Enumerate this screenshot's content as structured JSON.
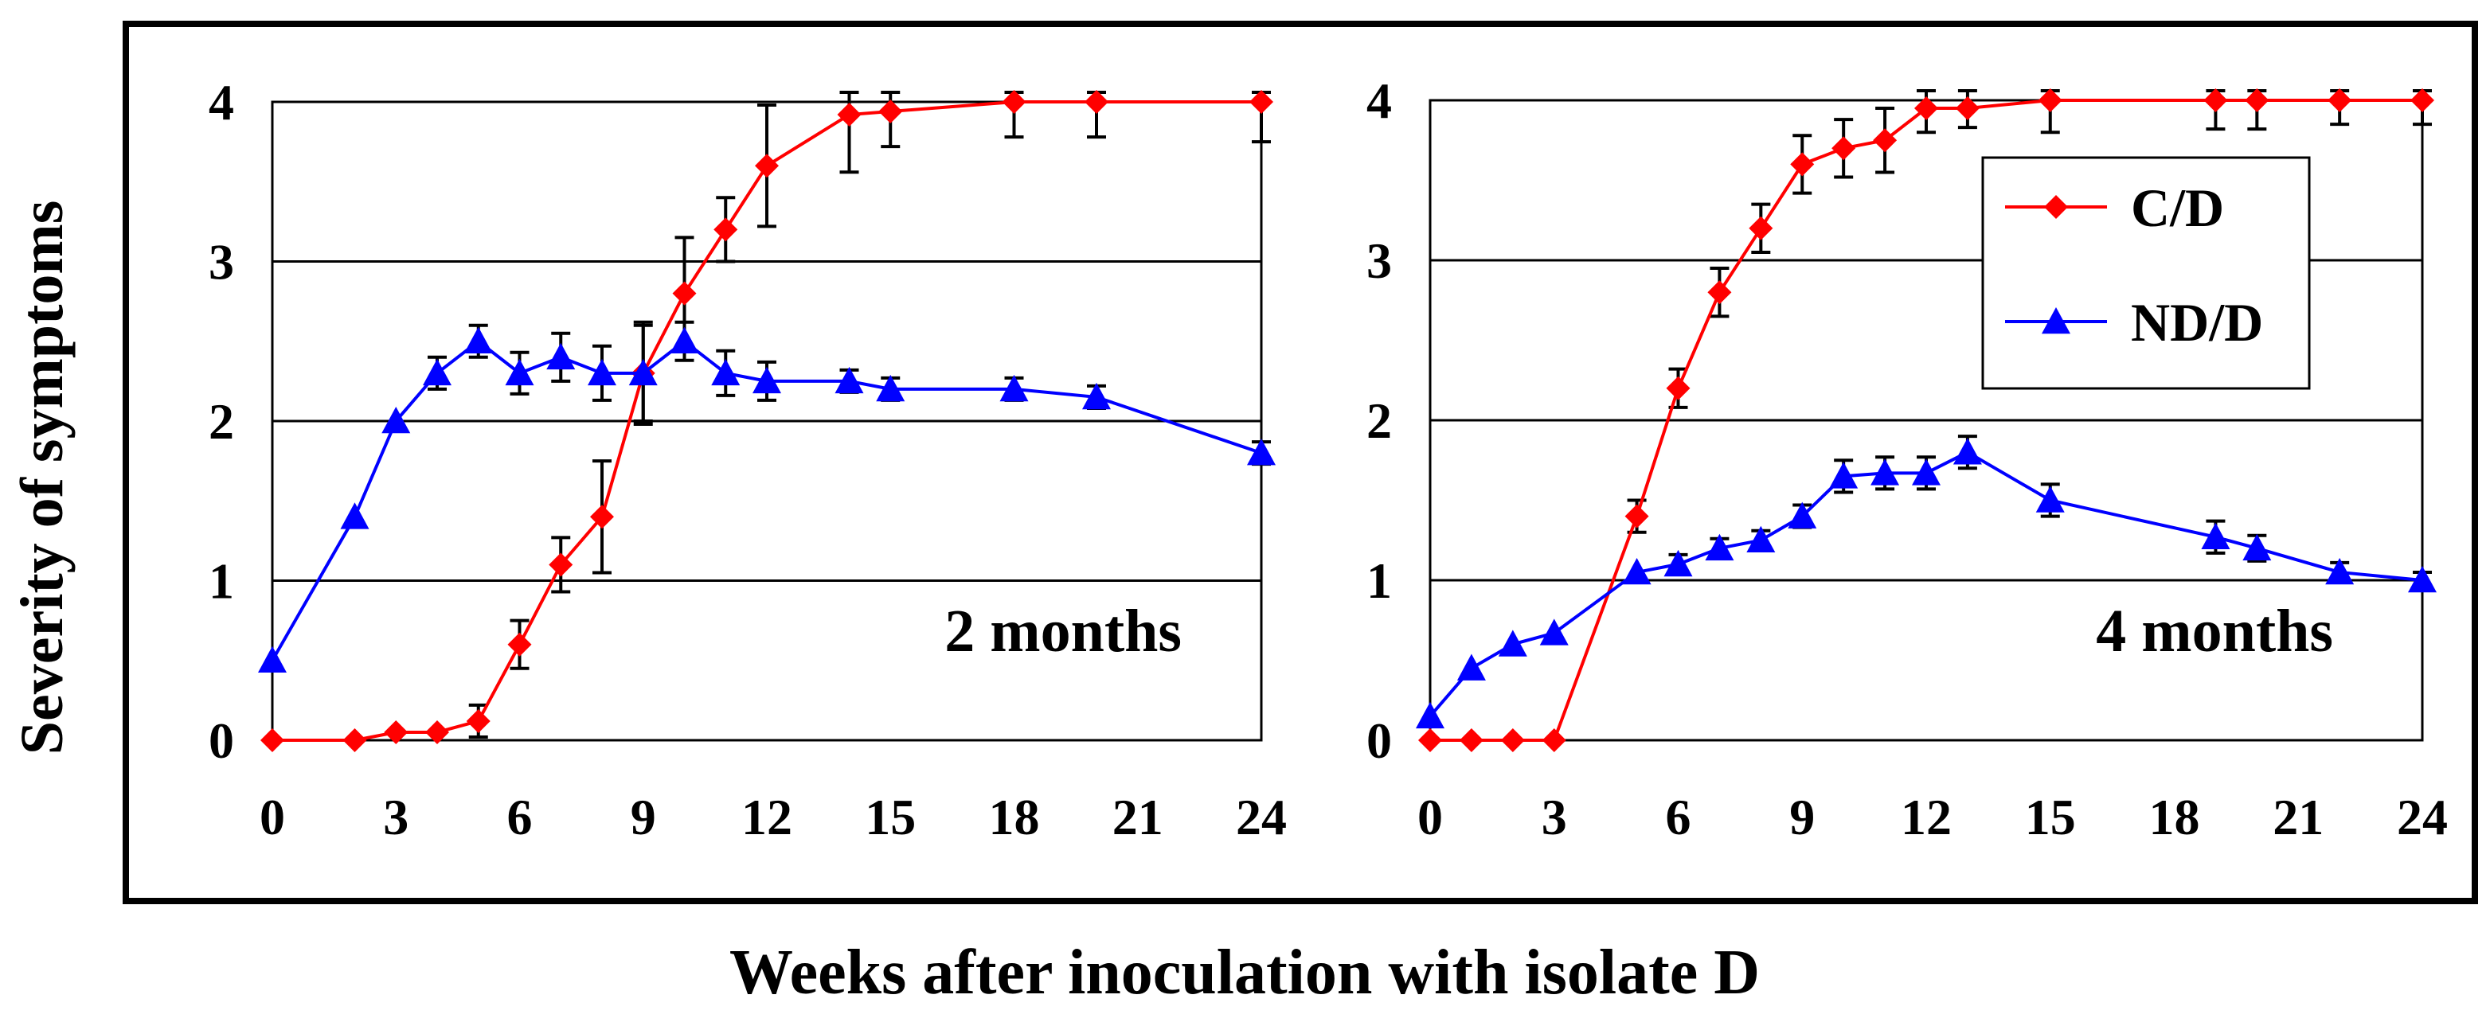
{
  "figure": {
    "ylabel": "Severity of symptoms",
    "xlabel": "Weeks after inoculation with isolate D"
  },
  "chart_data": [
    {
      "type": "line",
      "panel_label": "2 months",
      "xlabel": "Weeks after inoculation with isolate D",
      "ylabel": "Severity of symptoms",
      "xlim": [
        0,
        24
      ],
      "ylim": [
        0,
        4
      ],
      "xticks": [
        "0",
        "3",
        "6",
        "9",
        "12",
        "15",
        "18",
        "21",
        "24"
      ],
      "yticks": [
        "0",
        "1",
        "2",
        "3",
        "4"
      ],
      "grid": "horizontal",
      "series": [
        {
          "name": "C/D",
          "color": "#ff0000",
          "marker": "diamond",
          "x": [
            0,
            2,
            3,
            4,
            5,
            6,
            7,
            8,
            9,
            10,
            11,
            12,
            14,
            15,
            18,
            20,
            24
          ],
          "y": [
            0,
            0,
            0.05,
            0.05,
            0.12,
            0.6,
            1.1,
            1.4,
            2.3,
            2.8,
            3.2,
            3.6,
            3.92,
            3.94,
            4.0,
            4.0,
            4.0
          ],
          "err": [
            0,
            0,
            0,
            0,
            0.1,
            0.15,
            0.17,
            0.35,
            0.32,
            0.35,
            0.2,
            0.38,
            0.36,
            0.22,
            0.22,
            0.22,
            0.25
          ]
        },
        {
          "name": "ND/D",
          "color": "#0000ff",
          "marker": "triangle",
          "x": [
            0,
            2,
            3,
            4,
            5,
            6,
            7,
            8,
            9,
            10,
            11,
            12,
            14,
            15,
            18,
            20,
            24
          ],
          "y": [
            0.5,
            1.4,
            2.0,
            2.3,
            2.5,
            2.3,
            2.4,
            2.3,
            2.3,
            2.5,
            2.3,
            2.25,
            2.25,
            2.2,
            2.2,
            2.15,
            1.8
          ],
          "err": [
            0,
            0,
            0,
            0.1,
            0.1,
            0.13,
            0.15,
            0.17,
            0.3,
            0.12,
            0.14,
            0.12,
            0.07,
            0.07,
            0.07,
            0.07,
            0.07
          ]
        }
      ]
    },
    {
      "type": "line",
      "panel_label": "4 months",
      "xlabel": "Weeks after inoculation with isolate D",
      "ylabel": "Severity of symptoms",
      "xlim": [
        0,
        24
      ],
      "ylim": [
        0,
        4
      ],
      "xticks": [
        "0",
        "3",
        "6",
        "9",
        "12",
        "15",
        "18",
        "21",
        "24"
      ],
      "yticks": [
        "0",
        "1",
        "2",
        "3",
        "4"
      ],
      "grid": "horizontal",
      "legend_position": "top-right",
      "series": [
        {
          "name": "C/D",
          "color": "#ff0000",
          "marker": "diamond",
          "x": [
            0,
            1,
            2,
            3,
            5,
            6,
            7,
            8,
            9,
            10,
            11,
            12,
            13,
            15,
            19,
            20,
            22,
            24
          ],
          "y": [
            0,
            0,
            0,
            0,
            1.4,
            2.2,
            2.8,
            3.2,
            3.6,
            3.7,
            3.75,
            3.95,
            3.95,
            4.0,
            4.0,
            4.0,
            4.0,
            4.0
          ],
          "err": [
            0,
            0,
            0,
            0,
            0.1,
            0.12,
            0.15,
            0.15,
            0.18,
            0.18,
            0.2,
            0.15,
            0.12,
            0.2,
            0.18,
            0.18,
            0.15,
            0.15
          ]
        },
        {
          "name": "ND/D",
          "color": "#0000ff",
          "marker": "triangle",
          "x": [
            0,
            1,
            2,
            3,
            5,
            6,
            7,
            8,
            9,
            10,
            11,
            12,
            13,
            15,
            19,
            20,
            22,
            24
          ],
          "y": [
            0.15,
            0.45,
            0.6,
            0.67,
            1.05,
            1.1,
            1.2,
            1.25,
            1.4,
            1.65,
            1.67,
            1.67,
            1.8,
            1.5,
            1.27,
            1.2,
            1.05,
            1.0
          ],
          "err": [
            0,
            0,
            0,
            0,
            0,
            0.06,
            0.06,
            0.06,
            0.07,
            0.1,
            0.1,
            0.1,
            0.1,
            0.1,
            0.1,
            0.08,
            0.06,
            0.05
          ]
        }
      ]
    }
  ]
}
